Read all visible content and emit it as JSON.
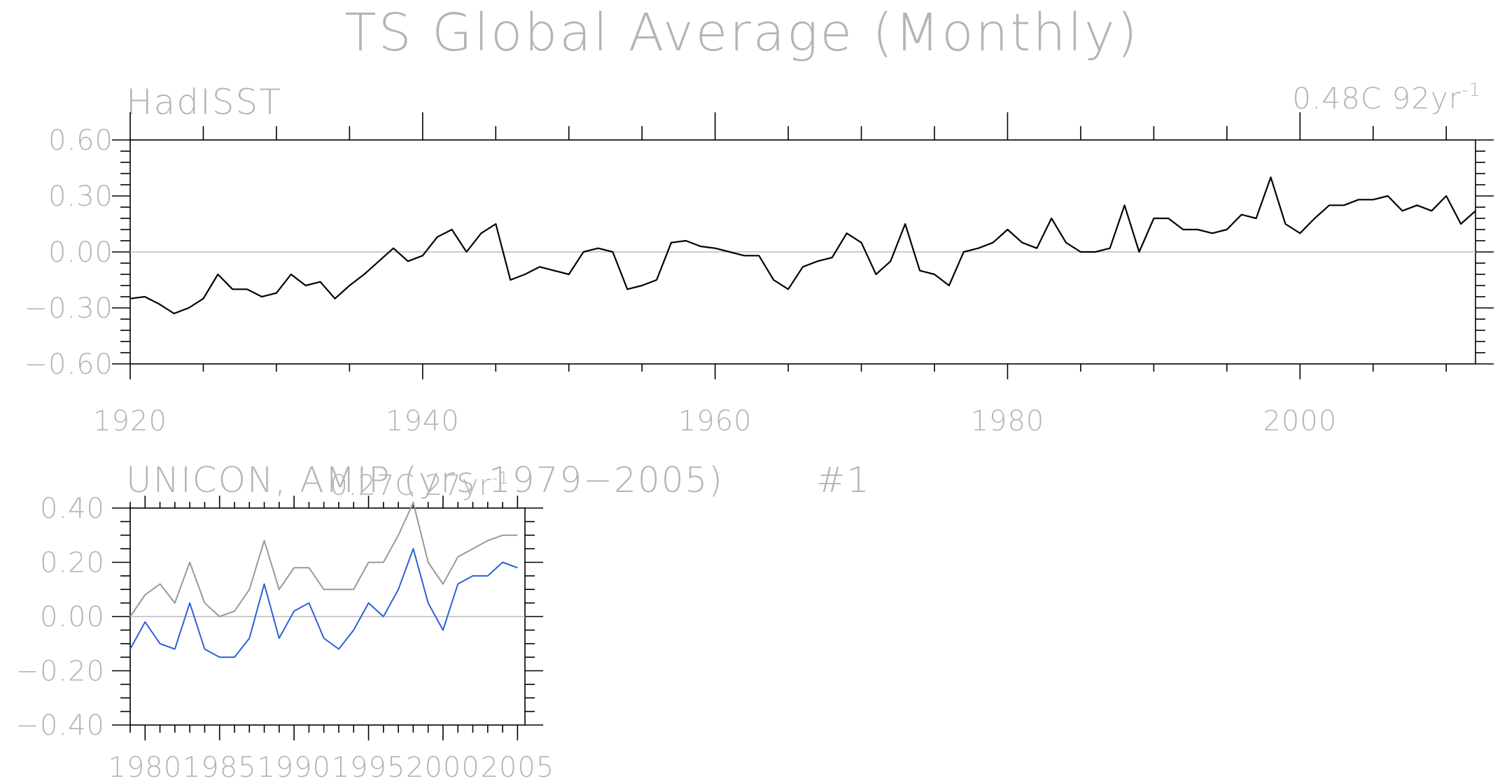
{
  "title": "TS Global Average (Monthly)",
  "chart_data": [
    {
      "type": "line",
      "title": "HadISST",
      "trend": {
        "value": "0.48C 92yr",
        "exponent": "-1"
      },
      "xlim": [
        1920,
        2012
      ],
      "ylim": [
        -0.6,
        0.6
      ],
      "x_ticks": [
        1920,
        1940,
        1960,
        1980,
        2000
      ],
      "y_ticks": [
        0.6,
        0.3,
        0.0,
        -0.3,
        -0.6
      ],
      "y_tick_labels": [
        "0.60",
        "0.30",
        "0.00",
        "−0.30",
        "−0.60"
      ],
      "grid": false,
      "series": [
        {
          "color": "#000000",
          "x": [
            1920,
            1921,
            1922,
            1923,
            1924,
            1925,
            1926,
            1927,
            1928,
            1929,
            1930,
            1931,
            1932,
            1933,
            1934,
            1935,
            1936,
            1937,
            1938,
            1939,
            1940,
            1941,
            1942,
            1943,
            1944,
            1945,
            1946,
            1947,
            1948,
            1949,
            1950,
            1951,
            1952,
            1953,
            1954,
            1955,
            1956,
            1957,
            1958,
            1959,
            1960,
            1961,
            1962,
            1963,
            1964,
            1965,
            1966,
            1967,
            1968,
            1969,
            1970,
            1971,
            1972,
            1973,
            1974,
            1975,
            1976,
            1977,
            1978,
            1979,
            1980,
            1981,
            1982,
            1983,
            1984,
            1985,
            1986,
            1987,
            1988,
            1989,
            1990,
            1991,
            1992,
            1993,
            1994,
            1995,
            1996,
            1997,
            1998,
            1999,
            2000,
            2001,
            2002,
            2003,
            2004,
            2005,
            2006,
            2007,
            2008,
            2009,
            2010,
            2011,
            2012
          ],
          "y": [
            -0.25,
            -0.24,
            -0.28,
            -0.33,
            -0.3,
            -0.25,
            -0.12,
            -0.2,
            -0.2,
            -0.24,
            -0.22,
            -0.12,
            -0.18,
            -0.16,
            -0.25,
            -0.18,
            -0.12,
            -0.05,
            0.02,
            -0.05,
            -0.02,
            0.08,
            0.12,
            0.0,
            0.1,
            0.15,
            -0.15,
            -0.12,
            -0.08,
            -0.1,
            -0.12,
            0.0,
            0.02,
            0.0,
            -0.2,
            -0.18,
            -0.15,
            0.05,
            0.06,
            0.03,
            0.02,
            0.0,
            -0.02,
            -0.02,
            -0.15,
            -0.2,
            -0.08,
            -0.05,
            -0.03,
            0.1,
            0.05,
            -0.12,
            -0.05,
            0.15,
            -0.1,
            -0.12,
            -0.18,
            0.0,
            0.02,
            0.05,
            0.12,
            0.05,
            0.02,
            0.18,
            0.05,
            0.0,
            0.0,
            0.02,
            0.25,
            0.0,
            0.18,
            0.18,
            0.12,
            0.12,
            0.1,
            0.12,
            0.2,
            0.18,
            0.4,
            0.15,
            0.1,
            0.18,
            0.25,
            0.25,
            0.28,
            0.28,
            0.3,
            0.22,
            0.25,
            0.22,
            0.3,
            0.15,
            0.22
          ]
        }
      ]
    },
    {
      "type": "line",
      "title": "UNICON, AMIP (yrs 1979−2005)",
      "tag": "#1",
      "trend": {
        "value": "0.27C 27yr",
        "exponent": "-1"
      },
      "xlim": [
        1979,
        2005.5
      ],
      "ylim": [
        -0.4,
        0.4
      ],
      "x_ticks": [
        1980,
        1985,
        1990,
        1995,
        2000,
        2005
      ],
      "y_ticks": [
        0.4,
        0.2,
        0.0,
        -0.2,
        -0.4
      ],
      "y_tick_labels": [
        "0.40",
        "0.20",
        "0.00",
        "−0.20",
        "−0.40"
      ],
      "grid": false,
      "series": [
        {
          "color": "#999999",
          "x": [
            1979,
            1980,
            1981,
            1982,
            1983,
            1984,
            1985,
            1986,
            1987,
            1988,
            1989,
            1990,
            1991,
            1992,
            1993,
            1994,
            1995,
            1996,
            1997,
            1998,
            1999,
            2000,
            2001,
            2002,
            2003,
            2004,
            2005
          ],
          "y": [
            0.0,
            0.08,
            0.12,
            0.05,
            0.2,
            0.05,
            0.0,
            0.02,
            0.1,
            0.28,
            0.1,
            0.18,
            0.18,
            0.1,
            0.1,
            0.1,
            0.2,
            0.2,
            0.3,
            0.42,
            0.2,
            0.12,
            0.22,
            0.25,
            0.28,
            0.3,
            0.3
          ]
        },
        {
          "color": "#2d5fd6",
          "x": [
            1979,
            1980,
            1981,
            1982,
            1983,
            1984,
            1985,
            1986,
            1987,
            1988,
            1989,
            1990,
            1991,
            1992,
            1993,
            1994,
            1995,
            1996,
            1997,
            1998,
            1999,
            2000,
            2001,
            2002,
            2003,
            2004,
            2005
          ],
          "y": [
            -0.12,
            -0.02,
            -0.1,
            -0.12,
            0.05,
            -0.12,
            -0.15,
            -0.15,
            -0.08,
            0.12,
            -0.08,
            0.02,
            0.05,
            -0.08,
            -0.12,
            -0.05,
            0.05,
            0.0,
            0.1,
            0.25,
            0.05,
            -0.05,
            0.12,
            0.15,
            0.15,
            0.2,
            0.18
          ]
        }
      ]
    }
  ]
}
